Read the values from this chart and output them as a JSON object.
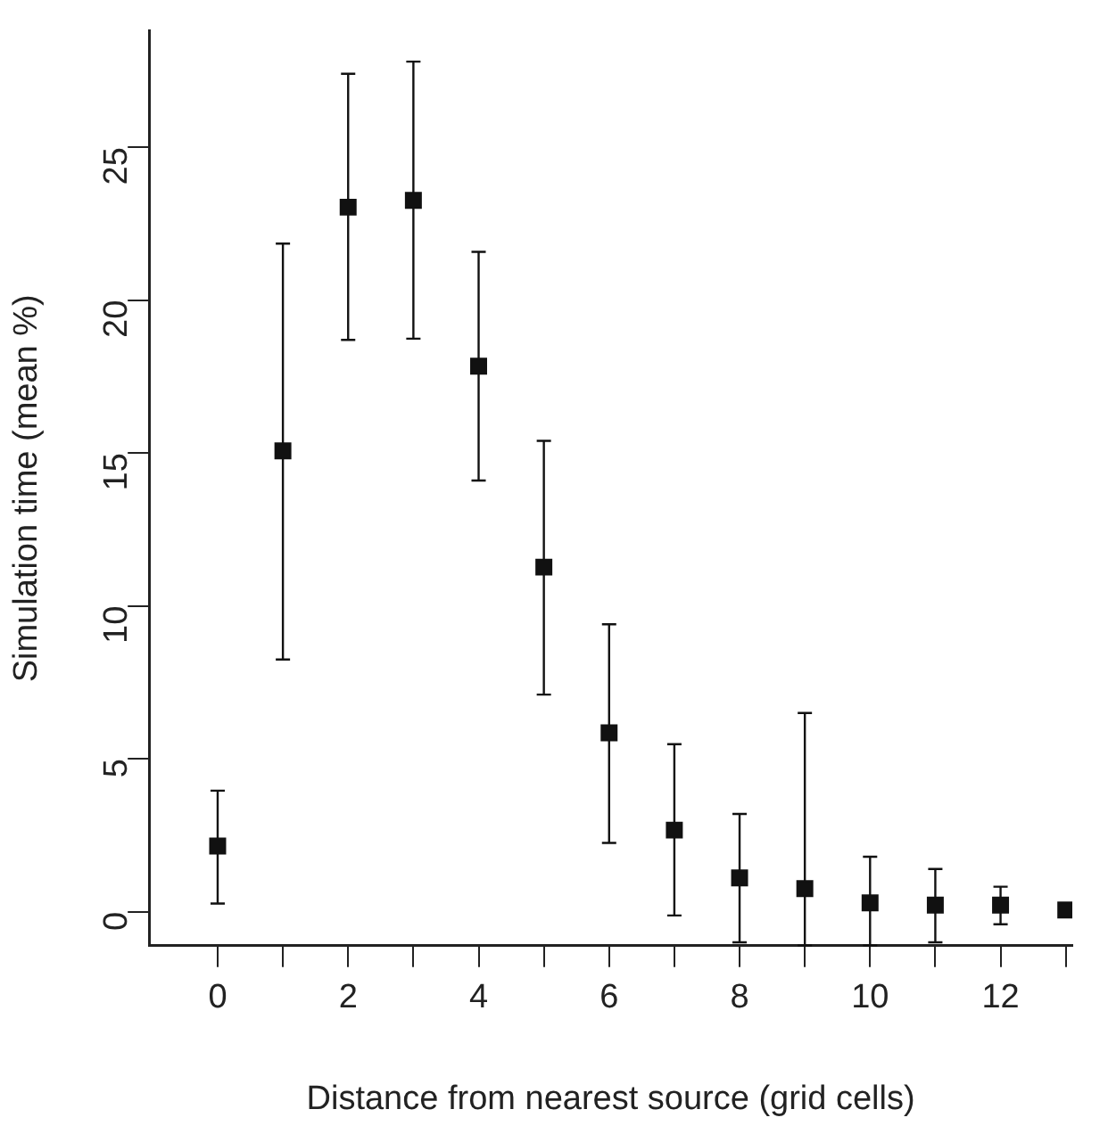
{
  "chart_data": {
    "type": "scatter",
    "xlabel": "Distance from nearest source (grid cells)",
    "ylabel": "Simulation time (mean %)",
    "x": [
      0,
      1,
      2,
      3,
      4,
      5,
      6,
      7,
      8,
      9,
      10,
      11,
      12,
      13
    ],
    "values": [
      2.15,
      15.07,
      23.04,
      23.26,
      17.84,
      11.27,
      5.85,
      2.67,
      1.11,
      0.76,
      0.29,
      0.22,
      0.22,
      0.06
    ],
    "errors": [
      [
        0.27,
        3.96
      ],
      [
        8.25,
        21.85
      ],
      [
        18.7,
        27.4
      ],
      [
        18.74,
        27.8
      ],
      [
        14.1,
        21.58
      ],
      [
        7.1,
        15.4
      ],
      [
        2.25,
        9.4
      ],
      [
        -0.12,
        5.48
      ],
      [
        -1.0,
        3.2
      ],
      [
        -1.1,
        6.5
      ],
      [
        -1.1,
        1.8
      ],
      [
        -1.0,
        1.4
      ],
      [
        -0.41,
        0.82
      ],
      null
    ],
    "color": "#111111",
    "xlim": [
      -1.05,
      13.1
    ],
    "xticks": [
      0,
      {
        "value": 1,
        "label": null
      },
      2,
      {
        "value": 3,
        "label": null
      },
      4,
      {
        "value": 5,
        "label": null
      },
      6,
      {
        "value": 7,
        "label": null
      },
      8,
      {
        "value": 9,
        "label": null
      },
      10,
      {
        "value": 11,
        "label": null
      },
      12,
      {
        "value": 13,
        "label": null
      }
    ],
    "ylim": [
      -1.11,
      28.8
    ],
    "yticks": [
      0,
      5,
      10,
      15,
      20,
      25
    ],
    "marker": "square",
    "grid": false,
    "legend": false
  }
}
